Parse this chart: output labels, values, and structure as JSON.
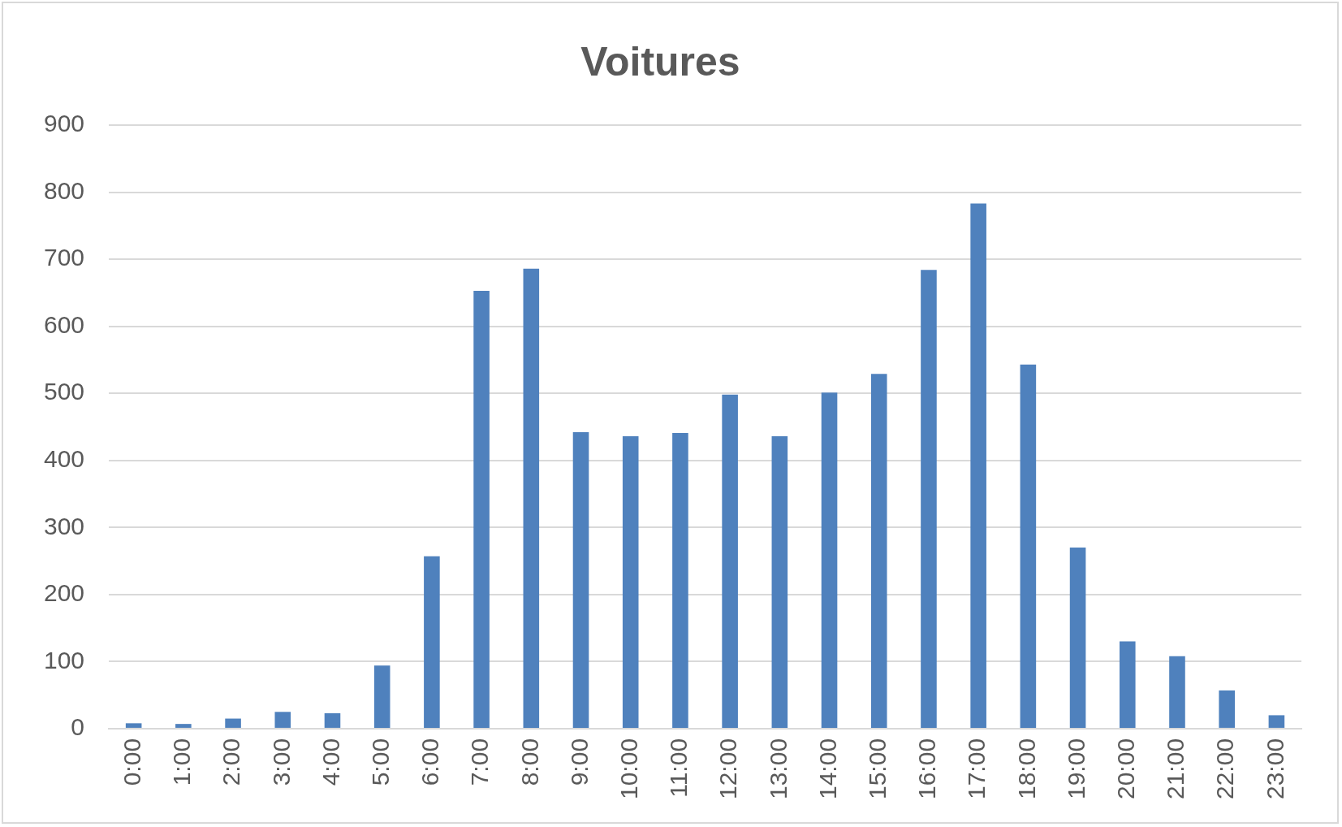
{
  "chart_data": {
    "type": "bar",
    "title": "Voitures",
    "categories": [
      "0:00",
      "1:00",
      "2:00",
      "3:00",
      "4:00",
      "5:00",
      "6:00",
      "7:00",
      "8:00",
      "9:00",
      "10:00",
      "11:00",
      "12:00",
      "13:00",
      "14:00",
      "15:00",
      "16:00",
      "17:00",
      "18:00",
      "19:00",
      "20:00",
      "21:00",
      "22:00",
      "23:00"
    ],
    "values": [
      8,
      7,
      15,
      25,
      23,
      94,
      257,
      653,
      686,
      442,
      436,
      441,
      498,
      436,
      501,
      529,
      684,
      783,
      543,
      270,
      130,
      108,
      57,
      20
    ],
    "color": "#4f81bd",
    "ylim": [
      0,
      900
    ],
    "yticks": [
      0,
      100,
      200,
      300,
      400,
      500,
      600,
      700,
      800,
      900
    ],
    "grid": "y",
    "legend": false
  }
}
